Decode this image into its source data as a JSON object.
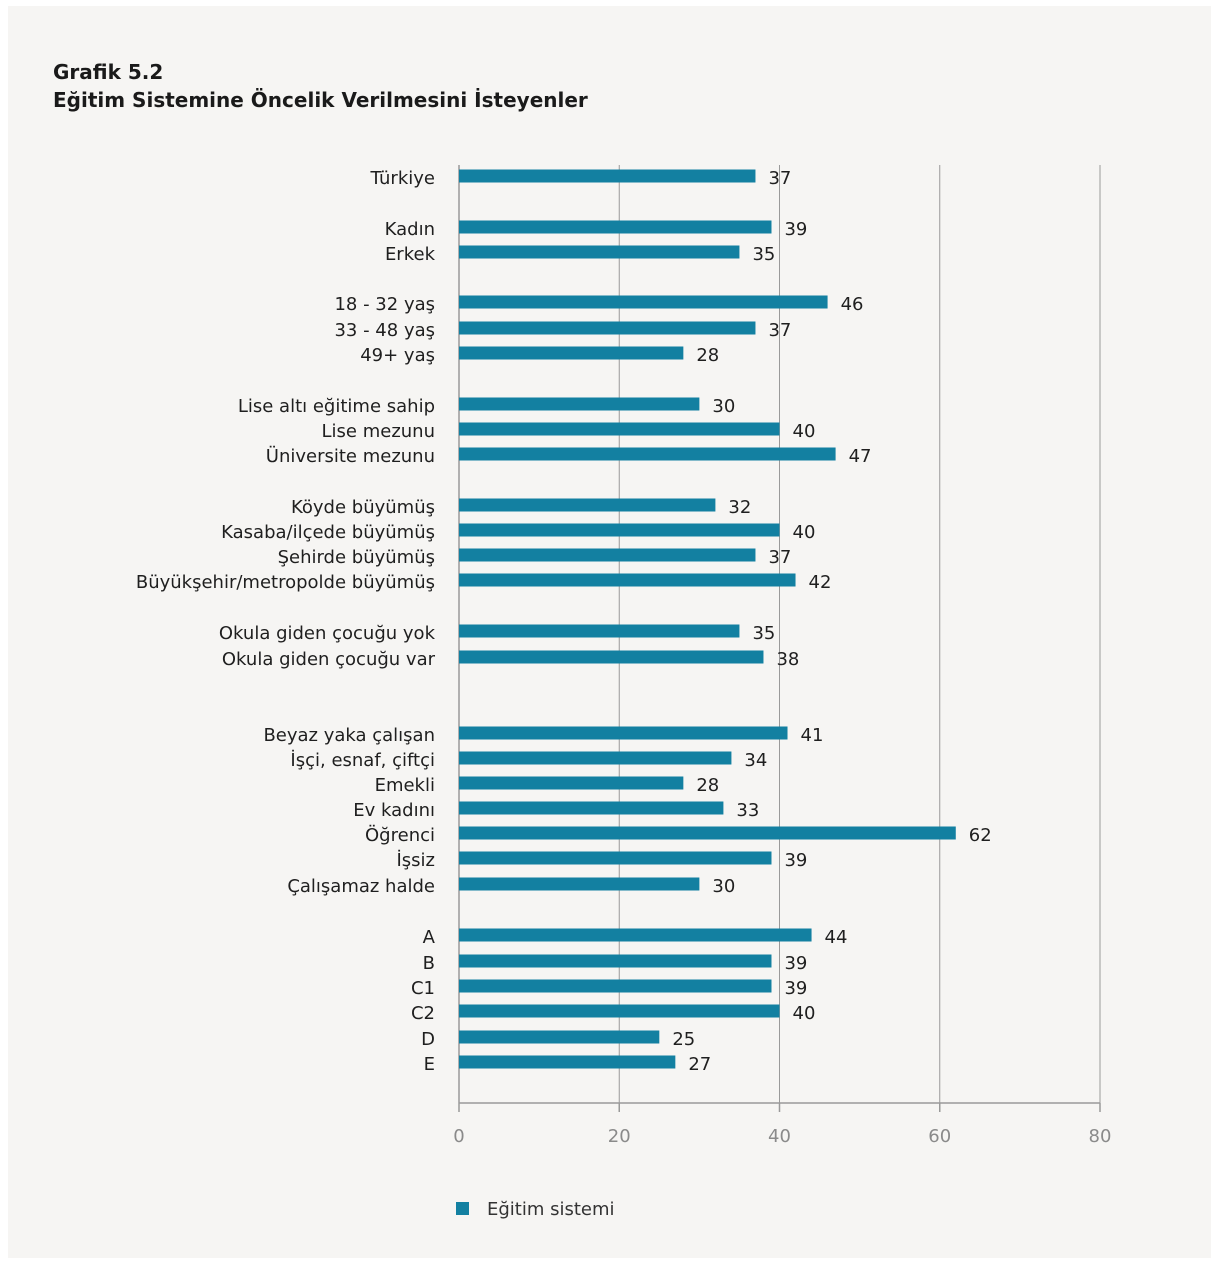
{
  "chart_data": {
    "type": "bar",
    "orientation": "horizontal",
    "title": "Grafik 5.2",
    "subtitle": "Eğitim Sistemine Öncelik Verilmesini İsteyenler",
    "series": [
      {
        "name": "Eğitim sistemi",
        "color": "#1380a1"
      }
    ],
    "xlim": [
      0,
      80
    ],
    "x_ticks": [
      "0",
      "20",
      "40",
      "60",
      "80"
    ],
    "grid": true,
    "legend_position": "bottom-center",
    "categories": [
      "Türkiye",
      "Kadın",
      "Erkek",
      "18 - 32 yaş",
      "33 - 48 yaş",
      "49+ yaş",
      "Lise altı eğitime sahip",
      "Lise mezunu",
      "Üniversite mezunu",
      "Köyde büyümüş",
      "Kasaba/ilçede büyümüş",
      "Şehirde büyümüş",
      "Büyükşehir/metropolde büyümüş",
      "Okula giden çocuğu yok",
      "Okula giden çocuğu var",
      "Beyaz yaka çalışan",
      "İşçi, esnaf, çiftçi",
      "Emekli",
      "Ev kadını",
      "Öğrenci",
      "İşsiz",
      "Çalışamaz halde",
      "A",
      "B",
      "C1",
      "C2",
      "D",
      "E"
    ],
    "values": [
      37,
      39,
      35,
      46,
      37,
      28,
      30,
      40,
      47,
      32,
      40,
      37,
      42,
      35,
      38,
      41,
      34,
      28,
      33,
      62,
      39,
      30,
      44,
      39,
      39,
      40,
      25,
      27
    ],
    "value_labels": [
      "37",
      "39",
      "35",
      "46",
      "37",
      "28",
      "30",
      "40",
      "47",
      "32",
      "40",
      "37",
      "42",
      "35",
      "38",
      "41",
      "34",
      "28",
      "33",
      "62",
      "39",
      "30",
      "44",
      "39",
      "39",
      "40",
      "25",
      "27"
    ]
  }
}
